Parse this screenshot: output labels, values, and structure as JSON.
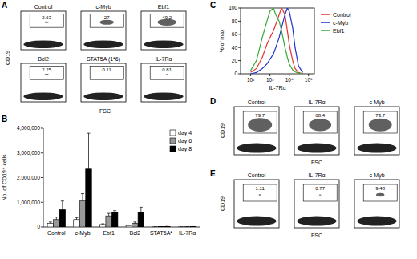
{
  "chart_data": [
    {
      "type": "flow_gate",
      "annotation": "A",
      "x_label": "FSC",
      "y_label": "CD19",
      "categories": [
        "Control",
        "c-Myb",
        "Ebf1",
        "Bcl2",
        "STAT5A (1*6)",
        "IL-7Rα"
      ],
      "values": [
        2.63,
        27,
        49.2,
        2.25,
        0.11,
        0.81
      ],
      "data_labels": true
    },
    {
      "type": "bar",
      "annotation": "B",
      "y_label": "No. of CD19⁺ cells",
      "categories": [
        "Control",
        "c-Myb",
        "Ebf1",
        "Bcl2",
        "STAT5A*",
        "IL-7Rα"
      ],
      "series": [
        {
          "name": "day 4",
          "color": "#ffffff",
          "values": [
            150000,
            300000,
            100000,
            60000,
            5000,
            3000
          ],
          "errors": [
            50000,
            80000,
            30000,
            20000,
            2000,
            2000
          ]
        },
        {
          "name": "day 6",
          "color": "#999999",
          "values": [
            300000,
            1050000,
            450000,
            150000,
            10000,
            8000
          ],
          "errors": [
            100000,
            300000,
            100000,
            50000,
            3000,
            3000
          ]
        },
        {
          "name": "day 8",
          "color": "#000000",
          "values": [
            700000,
            2350000,
            600000,
            600000,
            20000,
            15000
          ],
          "errors": [
            350000,
            1450000,
            60000,
            200000,
            5000,
            4000
          ]
        }
      ],
      "ylim": [
        0,
        4000000
      ],
      "yticks": [
        0,
        {
          "value": 1000000,
          "label": "1,000,000"
        },
        {
          "value": 2000000,
          "label": "2,000,000"
        },
        {
          "value": 3000000,
          "label": "3,000,000"
        },
        {
          "value": 4000000,
          "label": "4,000,000"
        }
      ],
      "legend": "top-right"
    },
    {
      "type": "line",
      "annotation": "C",
      "x_label": "IL-7Rα",
      "y_label": "% of max",
      "x": [
        100,
        200,
        400,
        700,
        1000,
        1500,
        2000,
        3000,
        4000,
        6000,
        8000,
        10000,
        15000,
        20000,
        30000,
        50000
      ],
      "series": [
        {
          "name": "Control",
          "color": "#e8312f",
          "values": [
            2,
            8,
            25,
            45,
            55,
            65,
            75,
            90,
            100,
            90,
            65,
            45,
            20,
            8,
            2,
            0
          ]
        },
        {
          "name": "c-Myb",
          "color": "#2233cc",
          "values": [
            0,
            2,
            8,
            15,
            22,
            30,
            40,
            55,
            70,
            90,
            100,
            95,
            70,
            40,
            12,
            2
          ]
        },
        {
          "name": "Ebf1",
          "color": "#33aa33",
          "values": [
            5,
            20,
            55,
            80,
            95,
            100,
            90,
            80,
            65,
            40,
            25,
            15,
            6,
            3,
            1,
            0
          ]
        }
      ],
      "xlim": [
        30,
        200000
      ],
      "xticks": [
        {
          "value": 100,
          "label": "10²"
        },
        {
          "value": 1000,
          "label": "10³"
        },
        {
          "value": 10000,
          "label": "10⁴"
        },
        {
          "value": 100000,
          "label": "10⁵"
        }
      ],
      "ylim": [
        0,
        100
      ],
      "yticks": [
        0,
        20,
        40,
        60,
        80,
        100
      ],
      "log": "x",
      "legend": "top-right"
    },
    {
      "type": "flow_gate",
      "annotation": "D",
      "x_label": "FSC",
      "y_label": "CD19",
      "categories": [
        "Control",
        "IL-7Rα",
        "c-Myb"
      ],
      "values": [
        79.7,
        68.4,
        73.7
      ],
      "data_labels": true
    },
    {
      "type": "flow_gate",
      "annotation": "E",
      "x_label": "FSC",
      "y_label": "CD19",
      "categories": [
        "Control",
        "IL-7Rα",
        "c-Myb"
      ],
      "values": [
        1.11,
        0.77,
        9.48
      ],
      "data_labels": true
    }
  ]
}
